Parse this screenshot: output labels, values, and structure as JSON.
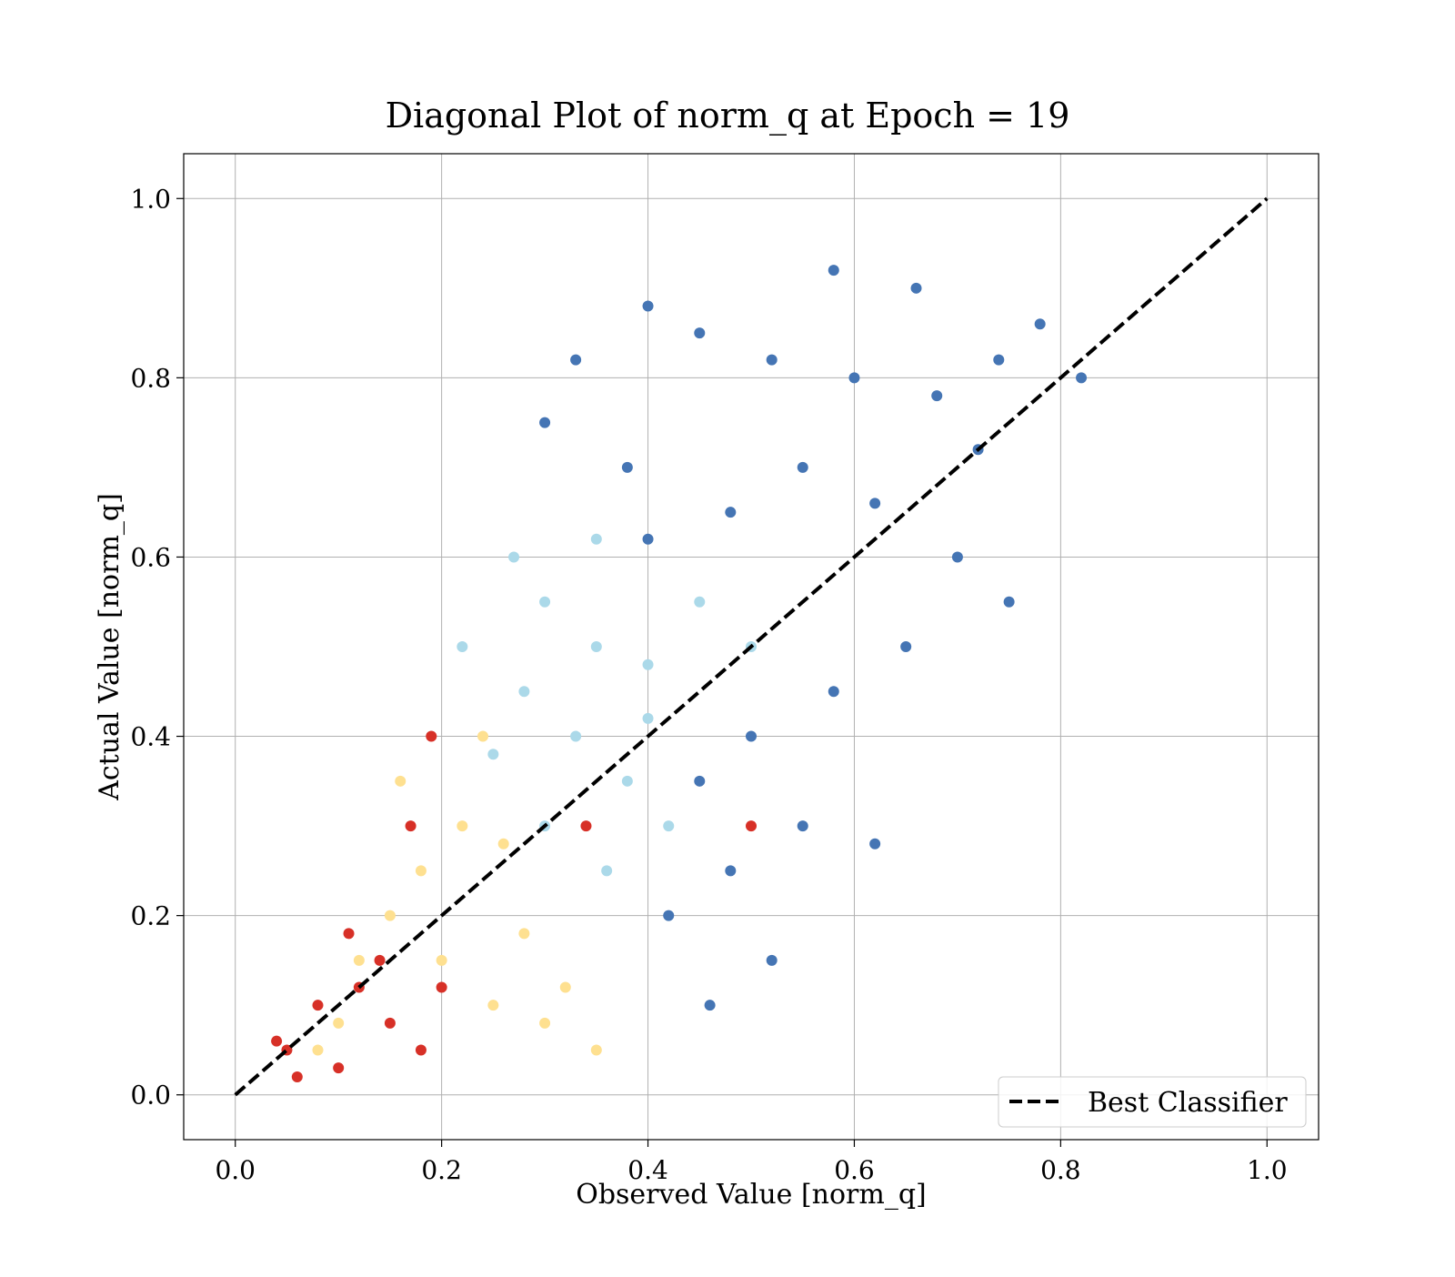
{
  "chart_data": {
    "type": "scatter",
    "title": "Diagonal Plot of norm_q at Epoch = 19",
    "xlabel": "Observed Value [norm_q]",
    "ylabel": "Actual Value [norm_q]",
    "xlim": [
      -0.05,
      1.05
    ],
    "ylim": [
      -0.05,
      1.05
    ],
    "grid": true,
    "x_ticks": [
      "0.0",
      "0.2",
      "0.4",
      "0.6",
      "0.8",
      "1.0"
    ],
    "y_ticks": [
      "0.0",
      "0.2",
      "0.4",
      "0.6",
      "0.8",
      "1.0"
    ],
    "x_tick_values": [
      0.0,
      0.2,
      0.4,
      0.6,
      0.8,
      1.0
    ],
    "y_tick_values": [
      0.0,
      0.2,
      0.4,
      0.6,
      0.8,
      1.0
    ],
    "legend": {
      "placement": "lower-right",
      "entries": [
        {
          "label": "Best Classifier",
          "style": "dashed",
          "color": "#000000"
        }
      ]
    },
    "reference_line": {
      "label": "Best Classifier",
      "x": [
        0.0,
        1.0
      ],
      "y": [
        0.0,
        1.0
      ],
      "style": "dashed",
      "color": "#000000"
    },
    "point_colormap": [
      "#313695",
      "#4575b4",
      "#74add1",
      "#abd9e9",
      "#e0f3f8",
      "#ffffbf",
      "#fee090",
      "#fdae61",
      "#f46d43",
      "#d73027",
      "#a50026"
    ],
    "series": [
      {
        "kind": "dense-cloud",
        "color": "#4575b4",
        "points": [
          [
            0.45,
            0.85
          ],
          [
            0.52,
            0.82
          ],
          [
            0.6,
            0.8
          ],
          [
            0.68,
            0.78
          ],
          [
            0.72,
            0.72
          ],
          [
            0.55,
            0.7
          ],
          [
            0.48,
            0.65
          ],
          [
            0.4,
            0.62
          ],
          [
            0.62,
            0.66
          ],
          [
            0.7,
            0.6
          ],
          [
            0.75,
            0.55
          ],
          [
            0.65,
            0.5
          ],
          [
            0.58,
            0.45
          ],
          [
            0.5,
            0.4
          ],
          [
            0.45,
            0.35
          ],
          [
            0.55,
            0.3
          ],
          [
            0.62,
            0.28
          ],
          [
            0.48,
            0.25
          ],
          [
            0.42,
            0.2
          ],
          [
            0.52,
            0.15
          ],
          [
            0.46,
            0.1
          ],
          [
            0.38,
            0.7
          ],
          [
            0.3,
            0.75
          ],
          [
            0.33,
            0.82
          ],
          [
            0.4,
            0.88
          ],
          [
            0.58,
            0.92
          ],
          [
            0.66,
            0.9
          ],
          [
            0.78,
            0.86
          ],
          [
            0.82,
            0.8
          ],
          [
            0.74,
            0.82
          ]
        ]
      },
      {
        "kind": "mid-cloud",
        "color": "#abd9e9",
        "points": [
          [
            0.3,
            0.55
          ],
          [
            0.35,
            0.5
          ],
          [
            0.4,
            0.48
          ],
          [
            0.28,
            0.45
          ],
          [
            0.33,
            0.4
          ],
          [
            0.38,
            0.35
          ],
          [
            0.42,
            0.3
          ],
          [
            0.36,
            0.25
          ],
          [
            0.3,
            0.3
          ],
          [
            0.25,
            0.38
          ],
          [
            0.22,
            0.5
          ],
          [
            0.27,
            0.6
          ],
          [
            0.35,
            0.62
          ],
          [
            0.45,
            0.55
          ],
          [
            0.5,
            0.5
          ],
          [
            0.4,
            0.42
          ]
        ]
      },
      {
        "kind": "warm-cloud",
        "color": "#fee090",
        "points": [
          [
            0.15,
            0.2
          ],
          [
            0.2,
            0.15
          ],
          [
            0.25,
            0.1
          ],
          [
            0.18,
            0.25
          ],
          [
            0.22,
            0.3
          ],
          [
            0.12,
            0.15
          ],
          [
            0.28,
            0.18
          ],
          [
            0.3,
            0.08
          ],
          [
            0.1,
            0.08
          ],
          [
            0.08,
            0.05
          ],
          [
            0.16,
            0.35
          ],
          [
            0.24,
            0.4
          ],
          [
            0.32,
            0.12
          ],
          [
            0.35,
            0.05
          ],
          [
            0.26,
            0.28
          ]
        ]
      },
      {
        "kind": "hot-cloud",
        "color": "#d73027",
        "points": [
          [
            0.05,
            0.05
          ],
          [
            0.08,
            0.1
          ],
          [
            0.1,
            0.03
          ],
          [
            0.12,
            0.12
          ],
          [
            0.06,
            0.02
          ],
          [
            0.15,
            0.08
          ],
          [
            0.18,
            0.05
          ],
          [
            0.04,
            0.06
          ],
          [
            0.11,
            0.18
          ],
          [
            0.14,
            0.15
          ],
          [
            0.2,
            0.12
          ],
          [
            0.17,
            0.3
          ],
          [
            0.19,
            0.4
          ],
          [
            0.34,
            0.3
          ],
          [
            0.5,
            0.3
          ]
        ]
      }
    ]
  }
}
